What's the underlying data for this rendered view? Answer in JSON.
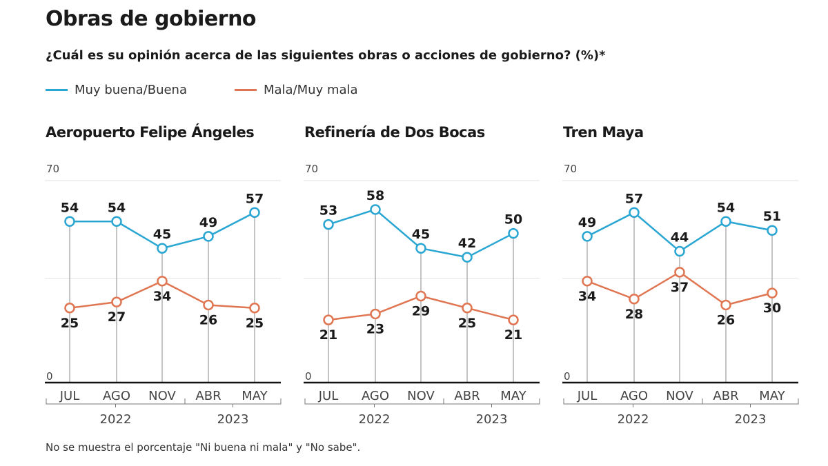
{
  "title": "Obras de gobierno",
  "subtitle": "¿Cuál es su opinión acerca de las siguientes obras o acciones de gobierno? (%)*",
  "note": "No se muestra el porcentaje \"Ni buena ni mala\" y \"No sabe\".",
  "colors": {
    "good": "#2aa6d3",
    "bad": "#e07552"
  },
  "chart_data": [
    {
      "type": "line",
      "title": "Aeropuerto Felipe Ángeles",
      "categories": [
        "JUL",
        "AGO",
        "NOV",
        "ABR",
        "MAY"
      ],
      "years": [
        {
          "label": "2022",
          "span": 3
        },
        {
          "label": "2023",
          "span": 2
        }
      ],
      "ylim": [
        0,
        70
      ],
      "yticks": [
        "0",
        "70"
      ],
      "grid": "midline at 35",
      "legend": "top-left",
      "series": [
        {
          "name": "Muy buena/Buena",
          "values": [
            54,
            54,
            45,
            49,
            57
          ]
        },
        {
          "name": "Mala/Muy mala",
          "values": [
            25,
            27,
            34,
            26,
            25
          ]
        }
      ]
    },
    {
      "type": "line",
      "title": "Refinería de Dos Bocas",
      "categories": [
        "JUL",
        "AGO",
        "NOV",
        "ABR",
        "MAY"
      ],
      "years": [
        {
          "label": "2022",
          "span": 3
        },
        {
          "label": "2023",
          "span": 2
        }
      ],
      "ylim": [
        0,
        70
      ],
      "yticks": [
        "0",
        "70"
      ],
      "grid": "midline at 35",
      "legend": "top-left",
      "series": [
        {
          "name": "Muy buena/Buena",
          "values": [
            53,
            58,
            45,
            42,
            50
          ]
        },
        {
          "name": "Mala/Muy mala",
          "values": [
            21,
            23,
            29,
            25,
            21
          ]
        }
      ]
    },
    {
      "type": "line",
      "title": "Tren Maya",
      "categories": [
        "JUL",
        "AGO",
        "NOV",
        "ABR",
        "MAY"
      ],
      "years": [
        {
          "label": "2022",
          "span": 3
        },
        {
          "label": "2023",
          "span": 2
        }
      ],
      "ylim": [
        0,
        70
      ],
      "yticks": [
        "0",
        "70"
      ],
      "grid": "midline at 35",
      "legend": "top-left",
      "series": [
        {
          "name": "Muy buena/Buena",
          "values": [
            49,
            57,
            44,
            54,
            51
          ]
        },
        {
          "name": "Mala/Muy mala",
          "values": [
            34,
            28,
            37,
            26,
            30
          ]
        }
      ]
    }
  ]
}
